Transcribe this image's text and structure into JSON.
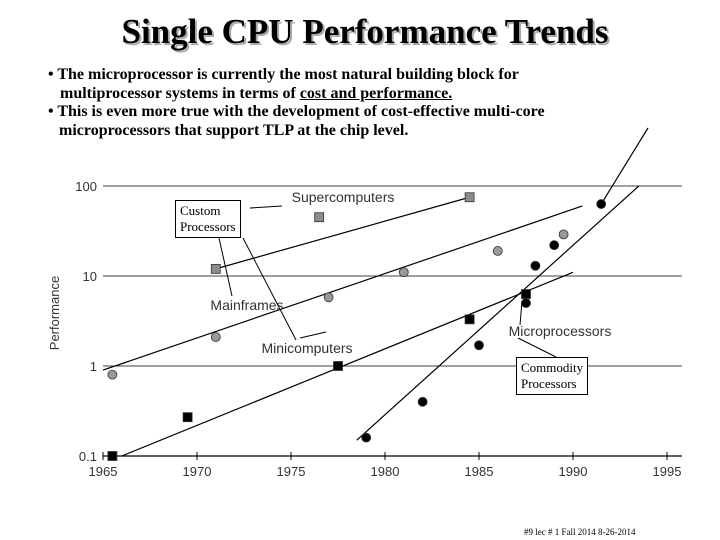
{
  "title": "Single CPU Performance Trends",
  "bullets": [
    {
      "pre": "• The microprocessor is currently the most natural building block for",
      "line2a": "multiprocessor systems in terms of ",
      "line2u": "cost and performance."
    },
    {
      "line1": "• This is even more true with the development  of cost-effective multi-core",
      "line2": "microprocessors that support TLP at the chip level."
    }
  ],
  "chart_data": {
    "type": "scatter",
    "xlabel": "",
    "ylabel": "Performance",
    "yscale": "log",
    "xlim": [
      1965,
      1995
    ],
    "ylim": [
      0.1,
      100
    ],
    "x_ticks": [
      "1965",
      "1970",
      "1975",
      "1980",
      "1985",
      "1990",
      "1995"
    ],
    "y_ticks": [
      "100",
      "10",
      "1",
      "0.1"
    ],
    "series": [
      {
        "name": "Supercomputers",
        "marker": "square",
        "color": "#8c8c8c",
        "points": [
          [
            1971,
            12
          ],
          [
            1976.5,
            45
          ],
          [
            1984.5,
            75
          ]
        ],
        "trend": [
          [
            1971,
            12
          ],
          [
            1984.5,
            75
          ]
        ]
      },
      {
        "name": "Mainframes",
        "marker": "circle",
        "color": "#999999",
        "points": [
          [
            1965.5,
            0.8
          ],
          [
            1971,
            2.1
          ],
          [
            1977,
            5.8
          ],
          [
            1981,
            11
          ],
          [
            1986,
            19
          ],
          [
            1989.5,
            29
          ]
        ],
        "trend": [
          [
            1965,
            0.9
          ],
          [
            1990.5,
            60
          ]
        ]
      },
      {
        "name": "Minicomputers",
        "marker": "square",
        "color": "#000000",
        "points": [
          [
            1965.5,
            0.1
          ],
          [
            1969.5,
            0.27
          ],
          [
            1977.5,
            1.0
          ],
          [
            1984.5,
            3.3
          ],
          [
            1987.5,
            6.3
          ]
        ],
        "trend": [
          [
            1966,
            0.1
          ],
          [
            1990,
            11
          ]
        ]
      },
      {
        "name": "Microprocessors",
        "marker": "circle",
        "color": "#000000",
        "points": [
          [
            1979,
            0.16
          ],
          [
            1982,
            0.4
          ],
          [
            1985,
            1.7
          ],
          [
            1987.5,
            5.0
          ],
          [
            1988,
            13
          ],
          [
            1989,
            22
          ],
          [
            1991.5,
            63
          ]
        ],
        "trend": [
          [
            1978.5,
            0.15
          ],
          [
            1993.5,
            100
          ]
        ]
      }
    ],
    "annotations": [
      "Supercomputers",
      "Mainframes",
      "Minicomputers",
      "Microprocessors"
    ],
    "callouts": [
      "Custom Processors",
      "Commodity Processors"
    ]
  },
  "callout_custom": [
    "Custom",
    "Processors"
  ],
  "callout_commodity": [
    "Commodity",
    "Processors"
  ],
  "footer": "#9   lec # 1   Fall 2014   8-26-2014"
}
